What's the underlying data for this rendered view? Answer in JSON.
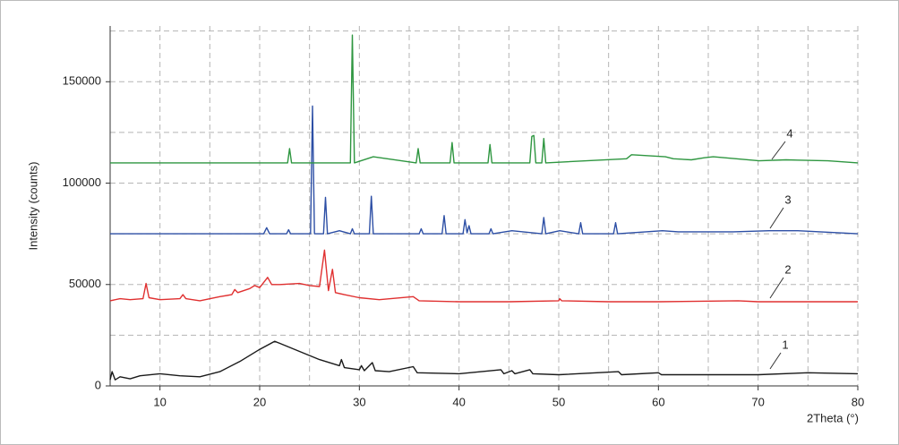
{
  "chart_data": {
    "type": "line",
    "x_label": "2Theta (°)",
    "y_label": "Intensity (counts)",
    "xlim": [
      5,
      80
    ],
    "xticks": [
      10,
      20,
      30,
      40,
      50,
      60,
      70,
      80
    ],
    "xgrid": [
      15,
      25,
      35,
      45,
      55,
      65,
      75
    ],
    "ylim": [
      0,
      177500
    ],
    "yticks": [
      0,
      50000,
      100000,
      150000
    ],
    "ygrid": [
      25000,
      75000,
      125000,
      175000
    ],
    "grid": true,
    "annotations": [
      "1",
      "2",
      "3",
      "4"
    ],
    "series": [
      {
        "name": "1",
        "color": "#1a1a1a",
        "x": [
          5,
          5.2,
          5.5,
          6,
          7,
          8,
          10,
          12,
          14,
          16,
          18,
          20,
          21.5,
          22,
          24,
          26,
          28,
          28.2,
          28.5,
          30,
          30.2,
          30.5,
          31.3,
          31.6,
          33,
          35.4,
          35.8,
          40,
          44.2,
          44.5,
          45.3,
          45.6,
          47.1,
          47.4,
          50,
          56,
          56.3,
          60,
          60.3,
          70,
          75,
          80
        ],
        "values": [
          3000,
          7000,
          3000,
          4500,
          3500,
          5000,
          6000,
          5000,
          4500,
          7000,
          12000,
          18000,
          22000,
          21000,
          17000,
          13000,
          10000,
          13000,
          9000,
          8000,
          10000,
          7500,
          11500,
          7500,
          7000,
          9500,
          6500,
          6000,
          8000,
          6000,
          7500,
          6000,
          8000,
          6000,
          5500,
          7000,
          5500,
          6500,
          5500,
          5500,
          6500,
          6000
        ]
      },
      {
        "name": "2",
        "color": "#e03030",
        "x": [
          5,
          6,
          7,
          8.3,
          8.6,
          8.9,
          10,
          12,
          12.3,
          12.6,
          14,
          16,
          17.2,
          17.5,
          17.8,
          19,
          19.5,
          20,
          20.8,
          21.2,
          22,
          24,
          25,
          26,
          26.5,
          26.9,
          27.3,
          27.6,
          28.5,
          30,
          32,
          35.4,
          36,
          40,
          45,
          50,
          50.1,
          50.3,
          55,
          60,
          68,
          70,
          80
        ],
        "values": [
          42000,
          43000,
          42500,
          43000,
          50500,
          43500,
          42500,
          43000,
          45000,
          43000,
          42000,
          44000,
          45000,
          47500,
          46000,
          48000,
          49500,
          48500,
          53500,
          50000,
          50000,
          50500,
          49500,
          49000,
          67000,
          47000,
          57500,
          46000,
          45000,
          43500,
          42500,
          44000,
          42000,
          41500,
          41500,
          42000,
          43000,
          42000,
          41500,
          41500,
          42000,
          41500,
          41500
        ]
      },
      {
        "name": "3",
        "color": "#2d4fa5",
        "x": [
          5,
          20.4,
          20.7,
          21,
          22.7,
          22.9,
          23.1,
          25.1,
          25.3,
          25.5,
          26.4,
          26.6,
          26.8,
          28,
          29.1,
          29.3,
          29.5,
          31,
          31.2,
          31.4,
          36,
          36.2,
          36.4,
          38.3,
          38.5,
          38.7,
          40.4,
          40.6,
          40.8,
          41,
          41.2,
          43,
          43.2,
          43.4,
          45.3,
          48.3,
          48.5,
          48.7,
          50.1,
          52,
          52.2,
          52.4,
          55.5,
          55.7,
          55.9,
          60.4,
          62,
          67.5,
          71.1,
          74,
          80
        ],
        "values": [
          75000,
          75000,
          78000,
          75000,
          75000,
          77000,
          75000,
          75000,
          138000,
          75000,
          75000,
          93000,
          75000,
          76500,
          75000,
          77500,
          75000,
          75000,
          93500,
          75000,
          75000,
          77500,
          75000,
          75000,
          84000,
          75000,
          75000,
          82000,
          75500,
          79000,
          75000,
          75000,
          77500,
          75000,
          76500,
          75000,
          83000,
          75000,
          76500,
          75000,
          80500,
          75000,
          75000,
          80500,
          75000,
          76500,
          76000,
          76000,
          76500,
          76500,
          75000
        ]
      },
      {
        "name": "4",
        "color": "#2e9640",
        "x": [
          5,
          22.8,
          23,
          23.2,
          29.1,
          29.3,
          29.5,
          31.4,
          35.7,
          35.9,
          36.1,
          39.1,
          39.3,
          39.5,
          42.9,
          43.1,
          43.3,
          47.1,
          47.3,
          47.5,
          47.7,
          48.3,
          48.5,
          48.7,
          56.8,
          57.3,
          60.7,
          61.5,
          63.3,
          64.6,
          65.5,
          70.1,
          72.8,
          77,
          80
        ],
        "values": [
          110000,
          110000,
          117000,
          110000,
          110000,
          173000,
          110000,
          113000,
          110000,
          117000,
          110000,
          110000,
          120000,
          110000,
          110000,
          119000,
          110000,
          110000,
          123000,
          123500,
          110000,
          110000,
          122000,
          110000,
          112000,
          114000,
          113000,
          112000,
          111500,
          112500,
          113000,
          111000,
          111500,
          111000,
          110000
        ]
      }
    ]
  }
}
